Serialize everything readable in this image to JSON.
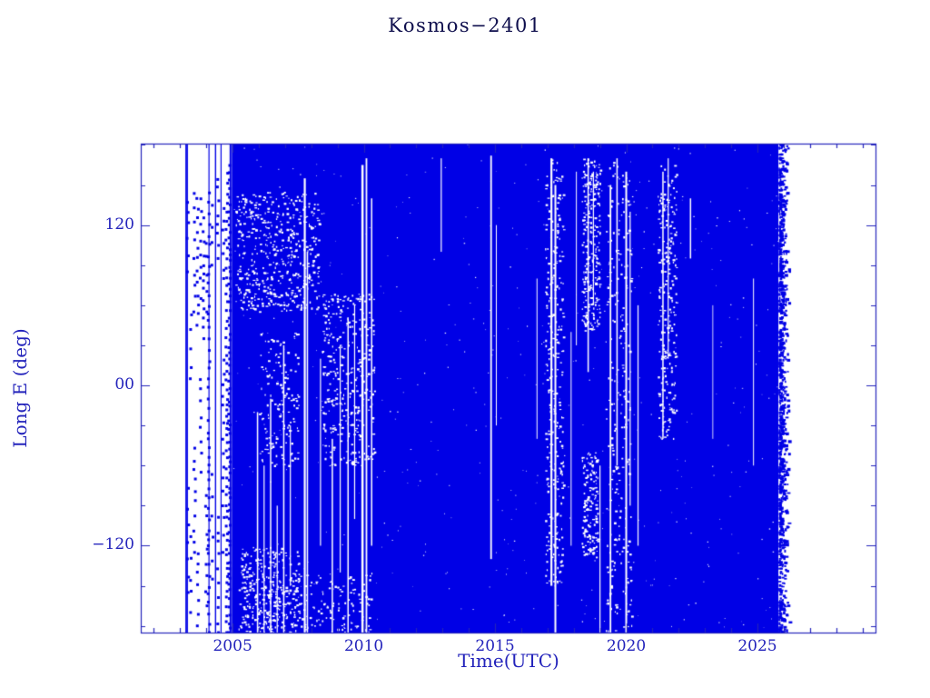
{
  "chart_data": {
    "type": "scatter",
    "title": "Kosmos−2401",
    "xlabel": "Time(UTC)",
    "ylabel": "Long E (deg)",
    "xlim": [
      2001.5,
      2029.5
    ],
    "ylim": [
      -185,
      181
    ],
    "x_major_ticks": [
      2005,
      2010,
      2015,
      2020,
      2025
    ],
    "x_tick_labels": [
      "2005",
      "2010",
      "2015",
      "2020",
      "2025"
    ],
    "x_minor_step": 1,
    "y_major_ticks": [
      -120,
      0,
      120
    ],
    "y_tick_labels": [
      "−120",
      "00",
      "120"
    ],
    "y_minor_step": 30,
    "grid": false,
    "legend": "none",
    "description": "Sub-satellite longitude history for Kosmos-2401: sparse tracking points from mid-2003 to 2005, then the satellite drifts through all Earth longitudes producing a nearly solid band of points from 2005 until early 2026, with narrow white data gaps at various epochs and a ragged dotted edge at the end of the record.",
    "colors": {
      "data": "#0000e6",
      "ink": "#2323bb",
      "title_color": "#0f0f4d",
      "background": "#ffffff"
    },
    "paint": {
      "solid": {
        "x0": 2004.97,
        "x1": 2025.8,
        "y0": -185,
        "y1": 181
      },
      "early_lines": [
        {
          "x": 2003.23,
          "w": 1.8
        },
        {
          "x": 2003.28,
          "w": 1.0
        },
        {
          "x": 2004.1,
          "w": 1.2
        },
        {
          "x": 2004.35,
          "w": 1.4
        },
        {
          "x": 2004.56,
          "w": 1.2
        },
        {
          "x": 2004.92,
          "w": 2.0
        }
      ],
      "marker_columns": [
        {
          "x": 2003.3,
          "step": 12,
          "segs": [
            [
              -155,
              -70
            ],
            [
              85,
              140
            ]
          ]
        },
        {
          "x": 2003.42,
          "step": 13,
          "segs": [
            [
              -170,
              -105
            ],
            [
              5,
              60
            ]
          ]
        },
        {
          "x": 2003.55,
          "step": 10,
          "segs": [
            [
              -125,
              -45
            ],
            [
              55,
              145
            ]
          ]
        },
        {
          "x": 2003.67,
          "step": 9,
          "segs": [
            [
              -180,
              -115
            ],
            [
              45,
              150
            ]
          ]
        },
        {
          "x": 2003.79,
          "step": 11,
          "segs": [
            [
              -65,
              5
            ],
            [
              65,
              150
            ]
          ]
        },
        {
          "x": 2003.9,
          "step": 8,
          "segs": [
            [
              35,
              135
            ]
          ]
        },
        {
          "x": 2004.0,
          "step": 11,
          "segs": [
            [
              -165,
              -75
            ],
            [
              55,
              120
            ]
          ]
        },
        {
          "x": 2004.1,
          "step": 7,
          "segs": [
            [
              -185,
              150
            ]
          ]
        },
        {
          "x": 2004.22,
          "step": 13,
          "segs": [
            [
              -145,
              -50
            ],
            [
              90,
              150
            ]
          ]
        },
        {
          "x": 2004.45,
          "step": 9,
          "segs": [
            [
              -185,
              -95
            ],
            [
              95,
              155
            ]
          ]
        },
        {
          "x": 2004.65,
          "step": 10,
          "segs": [
            [
              -125,
              25
            ],
            [
              80,
              140
            ]
          ]
        },
        {
          "x": 2004.78,
          "step": 6,
          "segs": [
            [
              -185,
              165
            ]
          ]
        },
        {
          "x": 2004.88,
          "step": 5,
          "segs": [
            [
              -185,
              170
            ]
          ]
        }
      ],
      "gap_streaks": [
        {
          "x": 2005.95,
          "y0": -185,
          "y1": -20,
          "w": 1.5
        },
        {
          "x": 2006.2,
          "y0": -185,
          "y1": -60,
          "w": 1.2
        },
        {
          "x": 2006.45,
          "y0": -185,
          "y1": -10,
          "w": 1.5
        },
        {
          "x": 2006.7,
          "y0": -185,
          "y1": -90,
          "w": 1.2
        },
        {
          "x": 2006.95,
          "y0": -185,
          "y1": 30,
          "w": 1.5
        },
        {
          "x": 2007.2,
          "y0": -150,
          "y1": -30,
          "w": 1.2
        },
        {
          "x": 2007.75,
          "y0": -185,
          "y1": 155,
          "w": 2.2
        },
        {
          "x": 2007.85,
          "y0": -185,
          "y1": 100,
          "w": 1.5
        },
        {
          "x": 2008.35,
          "y0": -120,
          "y1": 20,
          "w": 1.2
        },
        {
          "x": 2008.8,
          "y0": -185,
          "y1": -40,
          "w": 1.5
        },
        {
          "x": 2009.1,
          "y0": -140,
          "y1": 30,
          "w": 1.2
        },
        {
          "x": 2009.4,
          "y0": -185,
          "y1": 50,
          "w": 1.5
        },
        {
          "x": 2009.65,
          "y0": -100,
          "y1": 60,
          "w": 1.2
        },
        {
          "x": 2009.95,
          "y0": -185,
          "y1": 165,
          "w": 2.5
        },
        {
          "x": 2010.1,
          "y0": -185,
          "y1": 170,
          "w": 1.8
        },
        {
          "x": 2010.3,
          "y0": -120,
          "y1": 140,
          "w": 1.5
        },
        {
          "x": 2012.95,
          "y0": 100,
          "y1": 170,
          "w": 1.2
        },
        {
          "x": 2014.85,
          "y0": -130,
          "y1": 172,
          "w": 1.8
        },
        {
          "x": 2015.05,
          "y0": -30,
          "y1": 120,
          "w": 1.0
        },
        {
          "x": 2016.6,
          "y0": -40,
          "y1": 80,
          "w": 1.0
        },
        {
          "x": 2017.15,
          "y0": -150,
          "y1": 170,
          "w": 2.2
        },
        {
          "x": 2017.3,
          "y0": -185,
          "y1": 150,
          "w": 2.0
        },
        {
          "x": 2017.9,
          "y0": -120,
          "y1": 40,
          "w": 1.0
        },
        {
          "x": 2018.1,
          "y0": 30,
          "y1": 160,
          "w": 1.0
        },
        {
          "x": 2018.55,
          "y0": 10,
          "y1": 170,
          "w": 1.5
        },
        {
          "x": 2018.75,
          "y0": 60,
          "y1": 160,
          "w": 1.2
        },
        {
          "x": 2019.0,
          "y0": -185,
          "y1": -60,
          "w": 1.2
        },
        {
          "x": 2019.4,
          "y0": -185,
          "y1": 150,
          "w": 1.8
        },
        {
          "x": 2019.65,
          "y0": -60,
          "y1": 170,
          "w": 1.5
        },
        {
          "x": 2020.0,
          "y0": -185,
          "y1": 160,
          "w": 2.0
        },
        {
          "x": 2020.15,
          "y0": -90,
          "y1": 130,
          "w": 1.2
        },
        {
          "x": 2020.45,
          "y0": -120,
          "y1": 60,
          "w": 1.2
        },
        {
          "x": 2021.4,
          "y0": -40,
          "y1": 160,
          "w": 1.5
        },
        {
          "x": 2021.6,
          "y0": 20,
          "y1": 170,
          "w": 1.2
        },
        {
          "x": 2022.45,
          "y0": 95,
          "y1": 140,
          "w": 1.5
        },
        {
          "x": 2023.3,
          "y0": -40,
          "y1": 60,
          "w": 0.8
        },
        {
          "x": 2024.85,
          "y0": -60,
          "y1": 80,
          "w": 1.0
        }
      ],
      "speckle_regions": [
        {
          "x0": 2005.1,
          "x1": 2008.3,
          "y0": 55,
          "y1": 145,
          "n": 500,
          "size": 2
        },
        {
          "x0": 2005.3,
          "x1": 2007.6,
          "y0": -185,
          "y1": -120,
          "n": 250,
          "size": 2
        },
        {
          "x0": 2005.2,
          "x1": 2010.3,
          "y0": -185,
          "y1": -140,
          "n": 200,
          "size": 2
        },
        {
          "x0": 2008.4,
          "x1": 2010.4,
          "y0": -60,
          "y1": 70,
          "n": 350,
          "size": 2
        },
        {
          "x0": 2006.0,
          "x1": 2007.5,
          "y0": -60,
          "y1": 40,
          "n": 150,
          "size": 2
        },
        {
          "x0": 2016.9,
          "x1": 2017.6,
          "y0": -150,
          "y1": 170,
          "n": 300,
          "size": 2
        },
        {
          "x0": 2018.3,
          "x1": 2019.0,
          "y0": 40,
          "y1": 170,
          "n": 250,
          "size": 2
        },
        {
          "x0": 2018.3,
          "x1": 2018.9,
          "y0": -130,
          "y1": -50,
          "n": 150,
          "size": 2
        },
        {
          "x0": 2019.2,
          "x1": 2020.2,
          "y0": -185,
          "y1": 170,
          "n": 250,
          "size": 2
        },
        {
          "x0": 2021.2,
          "x1": 2021.9,
          "y0": -40,
          "y1": 165,
          "n": 250,
          "size": 2
        },
        {
          "x0": 2005.0,
          "x1": 2025.8,
          "y0": -185,
          "y1": 181,
          "n": 500,
          "size": 1
        }
      ],
      "right_edge": {
        "x0": 2025.8,
        "x1": 2026.2,
        "n": 900
      }
    }
  }
}
